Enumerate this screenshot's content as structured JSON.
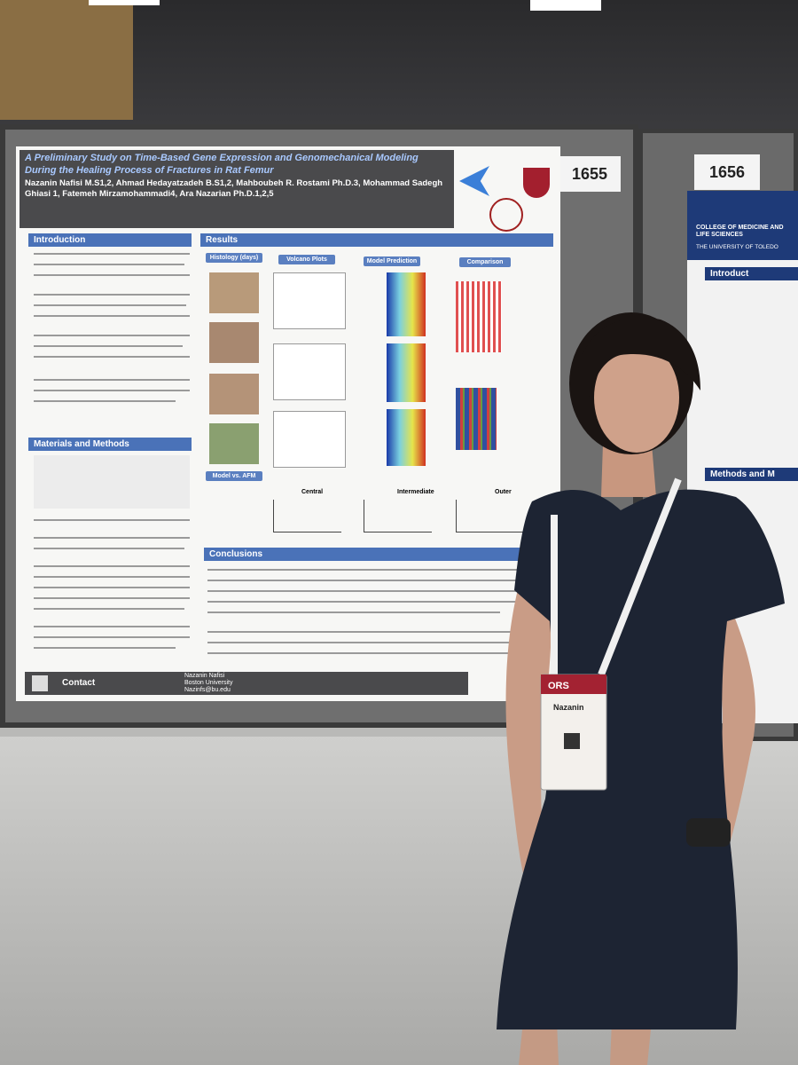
{
  "poster": {
    "title": "A Preliminary Study on Time-Based Gene Expression and Genomechanical Modeling During the Healing Process of Fractures in Rat Femur",
    "authors": "Nazanin Nafisi M.S1,2, Ahmad Hedayatzadeh B.S1,2, Mahboubeh R. Rostami Ph.D.3, Mohammad Sadegh Ghiasi 1, Fatemeh Mirzamohammadi4, Ara Nazarian Ph.D.1,2,5",
    "sections": {
      "introduction": "Introduction",
      "results": "Results",
      "methods": "Materials and Methods",
      "conclusions": "Conclusions"
    },
    "result_panels": [
      "Histology (days)",
      "Volcano Plots",
      "Model Prediction",
      "Comparison"
    ],
    "model_panel": "Model vs. AFM",
    "model_plots": [
      "Central",
      "Intermediate",
      "Outer"
    ],
    "contact": {
      "label": "Contact",
      "name": "Nazanin Nafisi",
      "org": "Boston University",
      "email": "Nazinfs@bu.edu"
    }
  },
  "booths": [
    "1655",
    "1656"
  ],
  "right_poster": {
    "org": "COLLEGE OF MEDICINE AND LIFE SCIENCES",
    "university": "THE UNIVERSITY OF TOLEDO",
    "sections": [
      "Introduct",
      "Methods and M"
    ]
  },
  "badge": {
    "org": "ORS",
    "name": "Nazanin"
  }
}
